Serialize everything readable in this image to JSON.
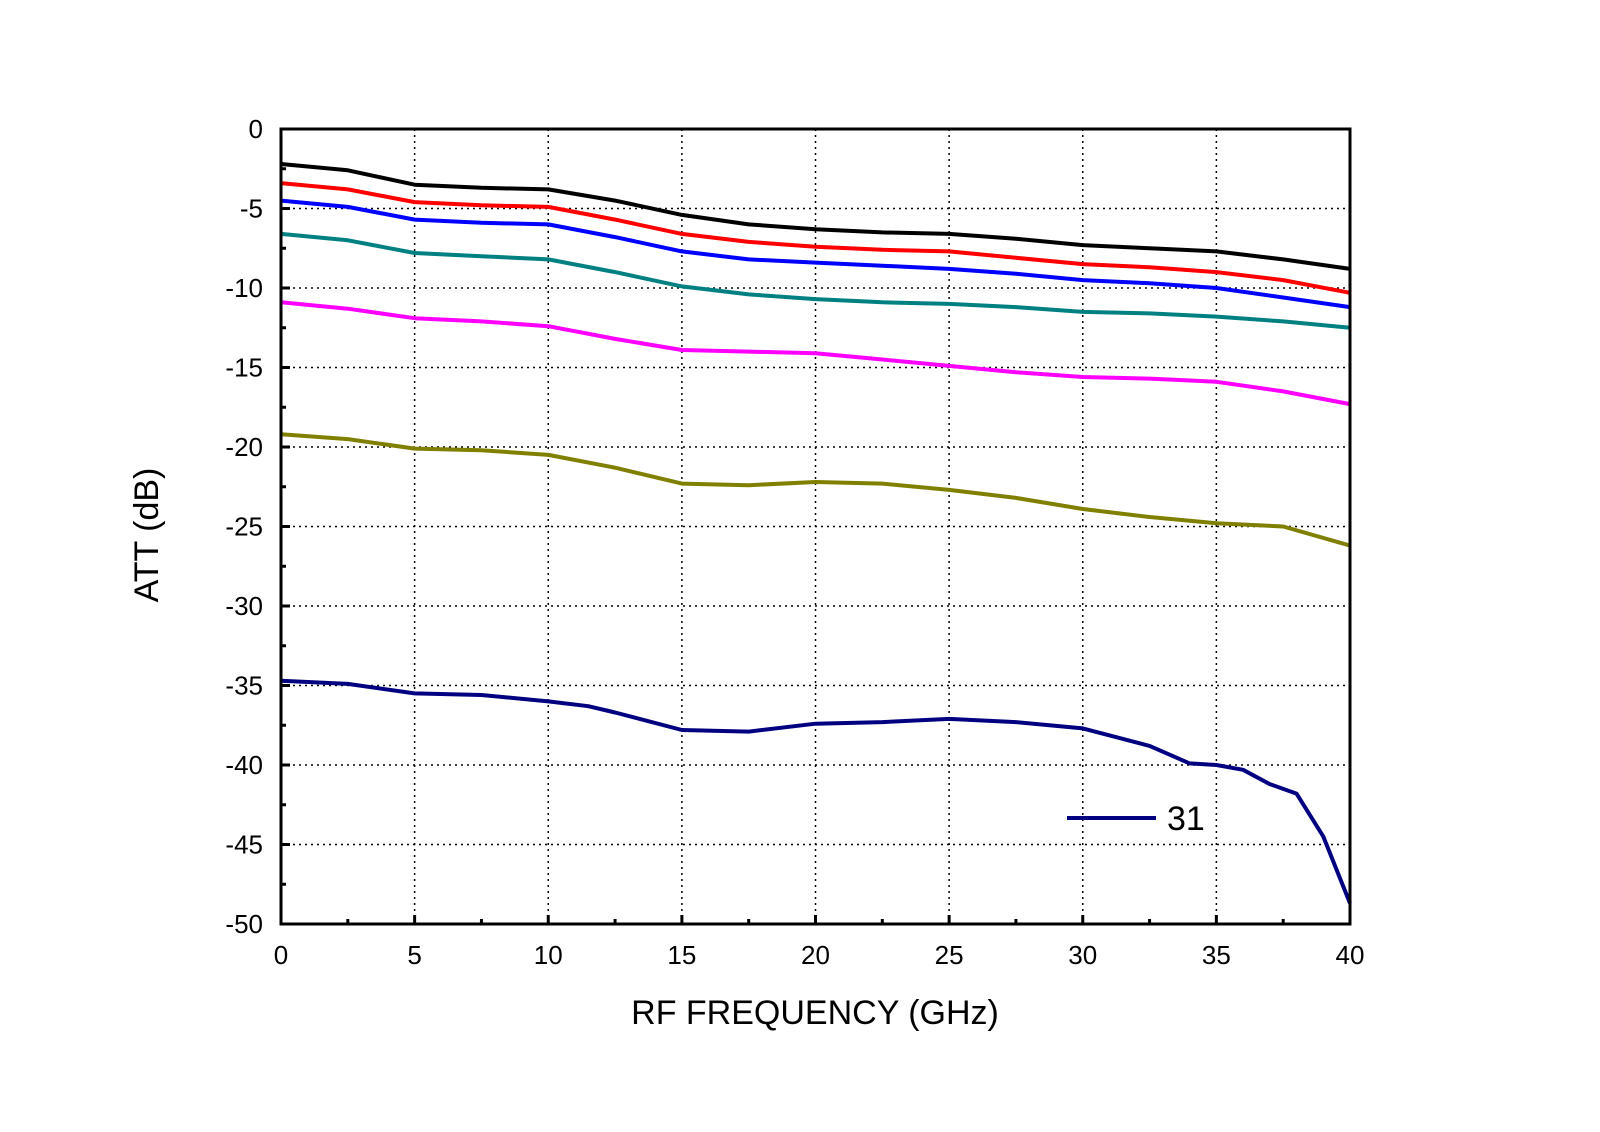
{
  "chart_data": {
    "type": "line",
    "title": "",
    "xlabel": "RF FREQUENCY (GHz)",
    "ylabel": "ATT (dB)",
    "xlim": [
      0,
      40
    ],
    "ylim": [
      -50,
      0
    ],
    "xticks": [
      "0",
      "5",
      "10",
      "15",
      "20",
      "25",
      "30",
      "35",
      "40"
    ],
    "yticks": [
      "0",
      "-5",
      "-10",
      "-15",
      "-20",
      "-25",
      "-30",
      "-35",
      "-40",
      "-45",
      "-50"
    ],
    "grid": true,
    "legend": {
      "placement": "bottom-right",
      "entries": [
        "31"
      ]
    },
    "x": [
      0,
      2.5,
      5,
      7.5,
      10,
      12.5,
      15,
      17.5,
      20,
      22.5,
      25,
      27.5,
      30,
      32.5,
      35,
      37.5,
      40
    ],
    "series": [
      {
        "color": "#000000",
        "values": [
          -2.2,
          -2.6,
          -3.5,
          -3.7,
          -3.8,
          -4.5,
          -5.4,
          -6.0,
          -6.3,
          -6.5,
          -6.6,
          -6.9,
          -7.3,
          -7.5,
          -7.7,
          -8.2,
          -8.8
        ]
      },
      {
        "color": "#ff0000",
        "values": [
          -3.4,
          -3.8,
          -4.6,
          -4.8,
          -4.9,
          -5.7,
          -6.6,
          -7.1,
          -7.4,
          -7.6,
          -7.7,
          -8.1,
          -8.5,
          -8.7,
          -9.0,
          -9.5,
          -10.3
        ]
      },
      {
        "color": "#0000ff",
        "values": [
          -4.5,
          -4.9,
          -5.7,
          -5.9,
          -6.0,
          -6.8,
          -7.7,
          -8.2,
          -8.4,
          -8.6,
          -8.8,
          -9.1,
          -9.5,
          -9.7,
          -10.0,
          -10.6,
          -11.2
        ]
      },
      {
        "color": "#008080",
        "values": [
          -6.6,
          -7.0,
          -7.8,
          -8.0,
          -8.2,
          -9.0,
          -9.9,
          -10.4,
          -10.7,
          -10.9,
          -11.0,
          -11.2,
          -11.5,
          -11.6,
          -11.8,
          -12.1,
          -12.5
        ]
      },
      {
        "color": "#ff00ff",
        "values": [
          -10.9,
          -11.3,
          -11.9,
          -12.1,
          -12.4,
          -13.2,
          -13.9,
          -14.0,
          -14.1,
          -14.5,
          -14.9,
          -15.3,
          -15.6,
          -15.7,
          -15.9,
          -16.5,
          -17.3
        ]
      },
      {
        "color": "#808000",
        "values": [
          -19.2,
          -19.5,
          -20.1,
          -20.2,
          -20.5,
          -21.3,
          -22.3,
          -22.4,
          -22.2,
          -22.3,
          -22.7,
          -23.2,
          -23.9,
          -24.4,
          -24.8,
          -25.0,
          -26.2
        ]
      },
      {
        "name": "31",
        "color": "#000080",
        "x": [
          0,
          2.5,
          5,
          7.5,
          10,
          11.5,
          12.5,
          15,
          17.5,
          20,
          22.5,
          25,
          27.5,
          30,
          32.5,
          34,
          35,
          36,
          37,
          38,
          39,
          40
        ],
        "values": [
          -34.7,
          -34.9,
          -35.5,
          -35.6,
          -36.0,
          -36.3,
          -36.7,
          -37.8,
          -37.9,
          -37.4,
          -37.3,
          -37.1,
          -37.3,
          -37.7,
          -38.8,
          -39.9,
          -40.0,
          -40.3,
          -41.2,
          -41.8,
          -44.5,
          -48.7
        ]
      }
    ]
  }
}
